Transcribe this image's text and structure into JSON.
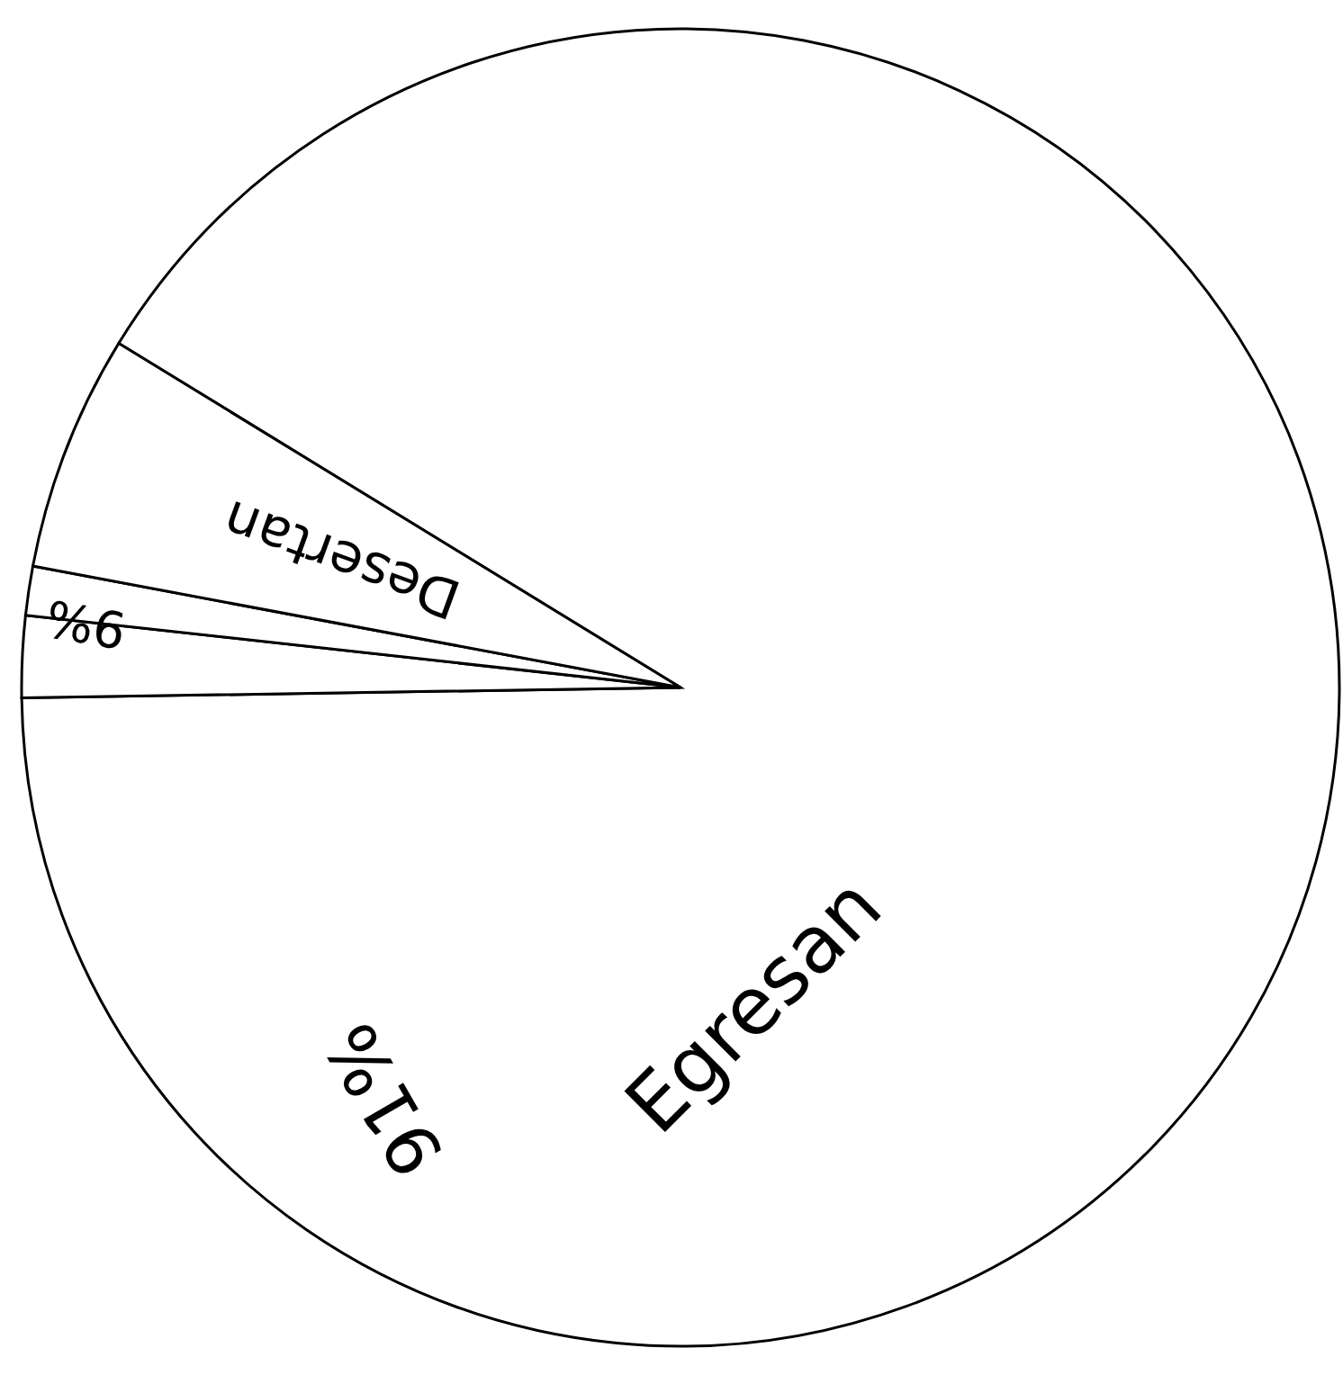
{
  "chart_data": {
    "type": "pie",
    "categories": [
      "Egresan",
      null,
      null,
      "Desertan"
    ],
    "values": [
      91,
      2.0,
      1.2,
      5.8
    ],
    "colors": [
      "#ffffff",
      "#ffffff",
      "#ffffff",
      "#ffffff"
    ],
    "value_labels": [
      "91%",
      null,
      null,
      null
    ],
    "annotations": [
      "9%"
    ]
  }
}
